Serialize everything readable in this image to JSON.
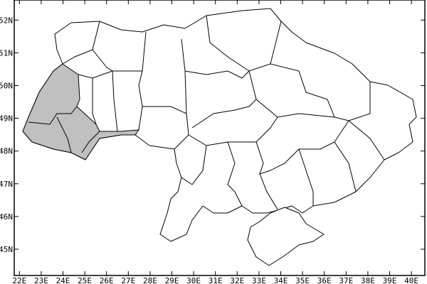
{
  "map": {
    "region": "Ukraine",
    "highlight_color": "#c0c0c0",
    "background_color": "#ffffff",
    "border_color": "#000000",
    "lon_range": [
      21.76,
      40.6
    ],
    "lat_range": [
      44.2,
      52.6
    ],
    "x_ticks": [
      "22E",
      "23E",
      "24E",
      "25E",
      "26E",
      "27E",
      "28E",
      "29E",
      "30E",
      "31E",
      "32E",
      "33E",
      "34E",
      "35E",
      "36E",
      "37E",
      "38E",
      "39E",
      "40E"
    ],
    "y_ticks": [
      "45N",
      "46N",
      "47N",
      "48N",
      "49N",
      "50N",
      "51N",
      "52N"
    ],
    "highlighted_regions": [
      "Lviv",
      "Ivano-Frankivsk",
      "Zakarpattia",
      "Chernivtsi"
    ]
  }
}
